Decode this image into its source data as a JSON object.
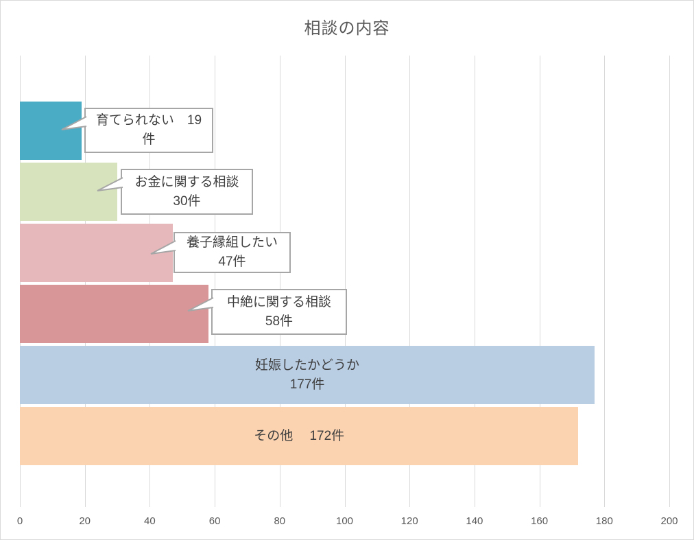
{
  "title": "相談の内容",
  "chart_data": {
    "type": "bar",
    "orientation": "horizontal",
    "title": "相談の内容",
    "xlabel": "",
    "ylabel": "",
    "xlim": [
      0,
      200
    ],
    "x_ticks": [
      "0",
      "20",
      "40",
      "60",
      "80",
      "100",
      "120",
      "140",
      "160",
      "180",
      "200"
    ],
    "grid": true,
    "legend": "none",
    "unit": "件",
    "categories": [
      "育てられない",
      "お金に関する相談",
      "養子縁組したい",
      "中絶に関する相談",
      "妊娠したかどうか",
      "その他"
    ],
    "values": [
      19,
      30,
      47,
      58,
      177,
      172
    ],
    "bars": [
      {
        "category": "育てられない",
        "value": 19,
        "color": "#4BACC6",
        "label_lines": [
          "育てられない　19",
          "件"
        ],
        "label_placement": "callout"
      },
      {
        "category": "お金に関する相談",
        "value": 30,
        "color": "#D6E3BC",
        "label_lines": [
          "お金に関する相談",
          "30件"
        ],
        "label_placement": "callout"
      },
      {
        "category": "養子縁組したい",
        "value": 47,
        "color": "#E7B8BB",
        "label_lines": [
          "養子縁組したい",
          "47件"
        ],
        "label_placement": "callout"
      },
      {
        "category": "中絶に関する相談",
        "value": 58,
        "color": "#D99698",
        "label_lines": [
          "中絶に関する相談",
          "58件"
        ],
        "label_placement": "callout"
      },
      {
        "category": "妊娠したかどうか",
        "value": 177,
        "color": "#B9CDE3",
        "label_lines": [
          "妊娠したかどうか",
          "177件"
        ],
        "label_placement": "inside"
      },
      {
        "category": "その他",
        "value": 172,
        "color": "#FCD3B0",
        "label_lines": [
          "その他　 172件"
        ],
        "label_placement": "inside"
      }
    ]
  },
  "colors": {
    "background": "#FFFFFF",
    "chart_border": "#D9D9D9",
    "gridline": "#D9D9D9",
    "title_text": "#595959",
    "axis_text": "#595959",
    "label_text": "#404040",
    "callout_border": "#A6A6A6",
    "callout_fill": "#FFFFFF"
  }
}
